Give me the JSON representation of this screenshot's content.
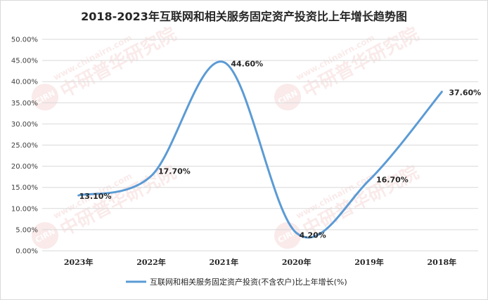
{
  "chart_data": {
    "type": "line",
    "title": "2018-2023年互联网和相关服务固定资产投资比上年增长趋势图",
    "categories": [
      "2023年",
      "2022年",
      "2021年",
      "2020年",
      "2019年",
      "2018年"
    ],
    "series": [
      {
        "name": "互联网和相关服务固定资产投资(不含农户)比上年增长(%)",
        "values": [
          13.1,
          17.7,
          44.6,
          4.2,
          16.7,
          37.6
        ],
        "labels": [
          "13.10%",
          "17.70%",
          "44.60%",
          "4.20%",
          "16.70%",
          "37.60%"
        ],
        "color": "#5b9bd5"
      }
    ],
    "ylim": [
      0,
      50
    ],
    "yticks": [
      "0.00%",
      "5.00%",
      "10.00%",
      "15.00%",
      "20.00%",
      "25.00%",
      "30.00%",
      "35.00%",
      "40.00%",
      "45.00%",
      "50.00%"
    ],
    "grid": true,
    "legend": "bottom",
    "smooth": true
  },
  "watermark": {
    "text": "www.chinairn.com",
    "brand": "中研普华研究院",
    "logo": "CIRN"
  }
}
